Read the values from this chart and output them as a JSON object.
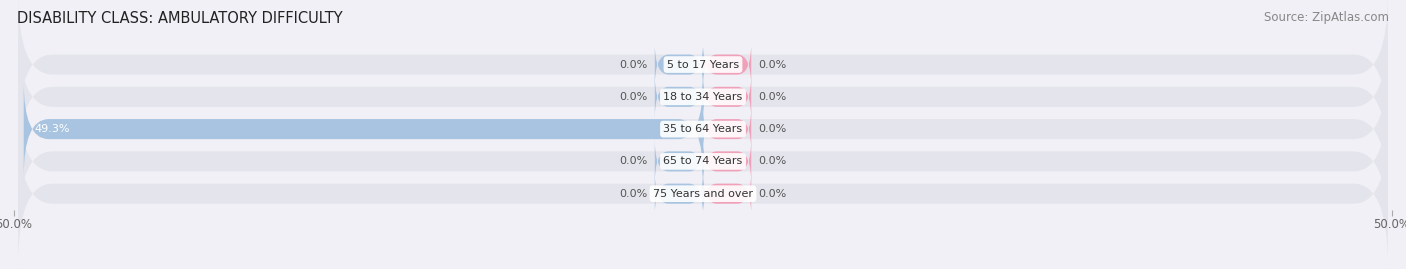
{
  "title": "DISABILITY CLASS: AMBULATORY DIFFICULTY",
  "source_text": "Source: ZipAtlas.com",
  "categories": [
    "5 to 17 Years",
    "18 to 34 Years",
    "35 to 64 Years",
    "65 to 74 Years",
    "75 Years and over"
  ],
  "male_values": [
    0.0,
    0.0,
    49.3,
    0.0,
    0.0
  ],
  "female_values": [
    0.0,
    0.0,
    0.0,
    0.0,
    0.0
  ],
  "male_color": "#a8c4e0",
  "female_color": "#f0a0b8",
  "row_bg_color": "#e4e4ec",
  "background_color": "#f0f0f6",
  "xlim_min": -50,
  "xlim_max": 50,
  "title_fontsize": 10.5,
  "source_fontsize": 8.5,
  "label_fontsize": 8,
  "category_fontsize": 8,
  "tick_fontsize": 8.5,
  "figure_width": 14.06,
  "figure_height": 2.69
}
